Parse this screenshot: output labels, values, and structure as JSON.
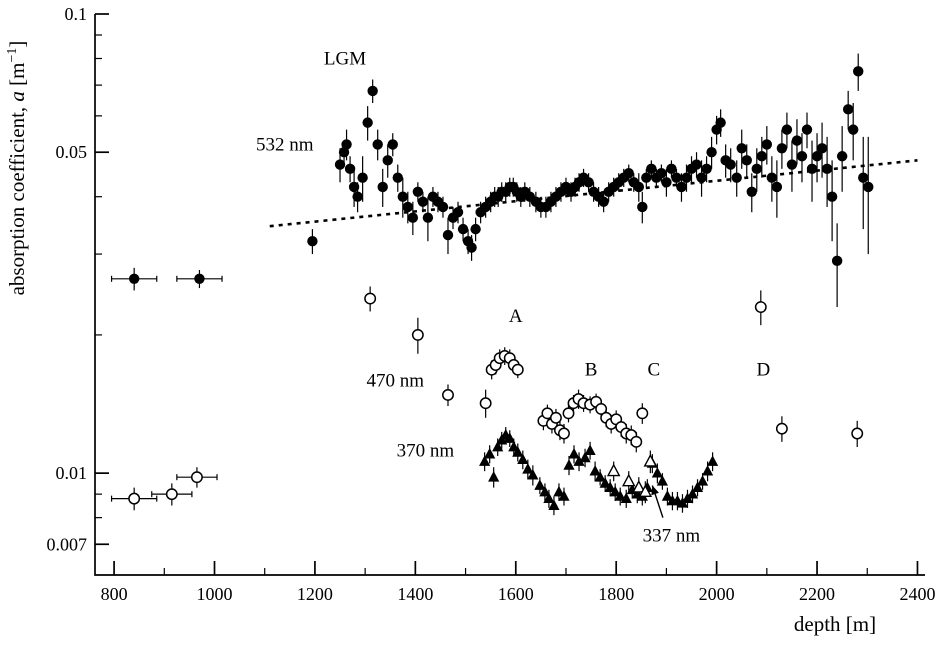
{
  "chart_data": {
    "type": "scatter",
    "title": "",
    "xlabel": "depth [m]",
    "ylabel_parts": {
      "prefix": "absorption coefficient, ",
      "italic": "a",
      "mid": " [m",
      "sup": "−1",
      "suffix": "]"
    },
    "x_axis": {
      "min": 762,
      "max": 2415,
      "major_ticks": [
        800,
        1000,
        1200,
        1400,
        1600,
        1800,
        2000,
        2200,
        2400
      ],
      "minor_ticks": [
        900,
        1100,
        1300,
        1500,
        1700,
        1900,
        2100,
        2300
      ]
    },
    "y_axis": {
      "scale": "log",
      "min": 0.006,
      "max": 0.1,
      "major_ticks": [
        {
          "v": 0.1,
          "label": "0.1"
        },
        {
          "v": 0.05,
          "label": "0.05"
        },
        {
          "v": 0.01,
          "label": "0.01"
        },
        {
          "v": 0.007,
          "label": "0.007"
        }
      ],
      "minor_ticks": [
        0.008,
        0.009,
        0.02,
        0.03,
        0.04,
        0.06,
        0.07,
        0.08,
        0.09
      ]
    },
    "trend_line": {
      "style": "dashed",
      "points": [
        [
          1110,
          0.0345
        ],
        [
          2400,
          0.048
        ]
      ]
    },
    "series": [
      {
        "name": "532 nm",
        "marker": "filled-circle",
        "points": [
          [
            840,
            0.0265,
            0.0015,
            45
          ],
          [
            970,
            0.0265,
            0.0012,
            45
          ],
          [
            1195,
            0.032,
            0.002
          ],
          [
            1250,
            0.047,
            0.004
          ],
          [
            1258,
            0.05,
            0.003
          ],
          [
            1263,
            0.052,
            0.004
          ],
          [
            1270,
            0.046,
            0.003
          ],
          [
            1278,
            0.042,
            0.004
          ],
          [
            1285,
            0.04,
            0.003
          ],
          [
            1295,
            0.044,
            0.005
          ],
          [
            1305,
            0.058,
            0.005
          ],
          [
            1315,
            0.068,
            0.004
          ],
          [
            1325,
            0.052,
            0.004
          ],
          [
            1335,
            0.042,
            0.004
          ],
          [
            1345,
            0.048,
            0.004
          ],
          [
            1355,
            0.052,
            0.003
          ],
          [
            1365,
            0.044,
            0.003
          ],
          [
            1375,
            0.04,
            0.004
          ],
          [
            1385,
            0.038,
            0.003
          ],
          [
            1395,
            0.036,
            0.003
          ],
          [
            1405,
            0.041,
            0.002
          ],
          [
            1415,
            0.039,
            0.002
          ],
          [
            1425,
            0.036,
            0.004
          ],
          [
            1435,
            0.04,
            0.002
          ],
          [
            1445,
            0.039,
            0.002
          ],
          [
            1455,
            0.038,
            0.002
          ],
          [
            1465,
            0.033,
            0.003
          ],
          [
            1475,
            0.036,
            0.002
          ],
          [
            1485,
            0.037,
            0.002
          ],
          [
            1495,
            0.034,
            0.002
          ],
          [
            1505,
            0.032,
            0.002
          ],
          [
            1512,
            0.031,
            0.002
          ],
          [
            1520,
            0.034,
            0.002
          ],
          [
            1530,
            0.037,
            0.002
          ],
          [
            1540,
            0.038,
            0.002
          ],
          [
            1550,
            0.039,
            0.002
          ],
          [
            1558,
            0.04,
            0.002
          ],
          [
            1565,
            0.04,
            0.002
          ],
          [
            1572,
            0.041,
            0.002
          ],
          [
            1580,
            0.041,
            0.002
          ],
          [
            1588,
            0.042,
            0.002
          ],
          [
            1595,
            0.042,
            0.002
          ],
          [
            1602,
            0.041,
            0.002
          ],
          [
            1610,
            0.04,
            0.002
          ],
          [
            1618,
            0.041,
            0.002
          ],
          [
            1628,
            0.04,
            0.002
          ],
          [
            1640,
            0.039,
            0.002
          ],
          [
            1650,
            0.038,
            0.002
          ],
          [
            1660,
            0.038,
            0.002
          ],
          [
            1670,
            0.039,
            0.002
          ],
          [
            1680,
            0.04,
            0.002
          ],
          [
            1690,
            0.041,
            0.002
          ],
          [
            1700,
            0.042,
            0.002
          ],
          [
            1710,
            0.041,
            0.002
          ],
          [
            1718,
            0.042,
            0.002
          ],
          [
            1726,
            0.043,
            0.002
          ],
          [
            1735,
            0.044,
            0.002
          ],
          [
            1745,
            0.043,
            0.002
          ],
          [
            1755,
            0.041,
            0.002
          ],
          [
            1765,
            0.04,
            0.002
          ],
          [
            1775,
            0.039,
            0.002
          ],
          [
            1785,
            0.041,
            0.002
          ],
          [
            1795,
            0.042,
            0.002
          ],
          [
            1805,
            0.043,
            0.002
          ],
          [
            1815,
            0.044,
            0.002
          ],
          [
            1825,
            0.045,
            0.002
          ],
          [
            1835,
            0.043,
            0.002
          ],
          [
            1845,
            0.042,
            0.003
          ],
          [
            1852,
            0.038,
            0.003
          ],
          [
            1860,
            0.044,
            0.002
          ],
          [
            1870,
            0.046,
            0.002
          ],
          [
            1880,
            0.044,
            0.002
          ],
          [
            1890,
            0.045,
            0.002
          ],
          [
            1900,
            0.043,
            0.003
          ],
          [
            1910,
            0.046,
            0.002
          ],
          [
            1920,
            0.044,
            0.002
          ],
          [
            1930,
            0.042,
            0.003
          ],
          [
            1940,
            0.044,
            0.003
          ],
          [
            1950,
            0.046,
            0.003
          ],
          [
            1960,
            0.047,
            0.003
          ],
          [
            1970,
            0.044,
            0.004
          ],
          [
            1980,
            0.046,
            0.003
          ],
          [
            1990,
            0.05,
            0.004
          ],
          [
            2000,
            0.056,
            0.004
          ],
          [
            2008,
            0.058,
            0.004
          ],
          [
            2018,
            0.048,
            0.004
          ],
          [
            2028,
            0.047,
            0.004
          ],
          [
            2040,
            0.044,
            0.004
          ],
          [
            2050,
            0.051,
            0.005
          ],
          [
            2060,
            0.048,
            0.004
          ],
          [
            2070,
            0.041,
            0.004
          ],
          [
            2080,
            0.046,
            0.005
          ],
          [
            2090,
            0.049,
            0.005
          ],
          [
            2100,
            0.052,
            0.005
          ],
          [
            2110,
            0.044,
            0.005
          ],
          [
            2120,
            0.042,
            0.006
          ],
          [
            2130,
            0.051,
            0.005
          ],
          [
            2140,
            0.056,
            0.005
          ],
          [
            2150,
            0.047,
            0.006
          ],
          [
            2160,
            0.053,
            0.006
          ],
          [
            2170,
            0.049,
            0.006
          ],
          [
            2180,
            0.056,
            0.005
          ],
          [
            2190,
            0.046,
            0.007
          ],
          [
            2200,
            0.049,
            0.006
          ],
          [
            2210,
            0.051,
            0.007
          ],
          [
            2220,
            0.046,
            0.008
          ],
          [
            2230,
            0.04,
            0.008
          ],
          [
            2240,
            0.029,
            0.006
          ],
          [
            2250,
            0.049,
            0.008
          ],
          [
            2262,
            0.062,
            0.006
          ],
          [
            2272,
            0.056,
            0.008
          ],
          [
            2282,
            0.075,
            0.007
          ],
          [
            2292,
            0.044,
            0.01
          ],
          [
            2302,
            0.042,
            0.012
          ]
        ]
      },
      {
        "name": "470 nm",
        "marker": "open-circle",
        "points": [
          [
            840,
            0.0088,
            0.0005,
            45
          ],
          [
            915,
            0.009,
            0.0005,
            40
          ],
          [
            965,
            0.0098,
            0.0005,
            40
          ],
          [
            1310,
            0.024,
            0.0015
          ],
          [
            1405,
            0.02,
            0.0018
          ],
          [
            1465,
            0.0148,
            0.0008
          ],
          [
            1540,
            0.0142,
            0.001
          ],
          [
            1552,
            0.0168,
            0.0008
          ],
          [
            1560,
            0.0172,
            0.0008
          ],
          [
            1568,
            0.0178,
            0.0008
          ],
          [
            1578,
            0.018,
            0.0008
          ],
          [
            1588,
            0.0178,
            0.0008
          ],
          [
            1596,
            0.0172,
            0.0007
          ],
          [
            1604,
            0.0168,
            0.0007
          ],
          [
            1655,
            0.013,
            0.0006
          ],
          [
            1663,
            0.0135,
            0.0006
          ],
          [
            1672,
            0.0128,
            0.0006
          ],
          [
            1680,
            0.0132,
            0.0006
          ],
          [
            1688,
            0.0124,
            0.0006
          ],
          [
            1696,
            0.0122,
            0.0006
          ],
          [
            1705,
            0.0135,
            0.0006
          ],
          [
            1715,
            0.0142,
            0.0006
          ],
          [
            1725,
            0.0145,
            0.0007
          ],
          [
            1735,
            0.0142,
            0.0006
          ],
          [
            1748,
            0.0141,
            0.0006
          ],
          [
            1760,
            0.0143,
            0.0006
          ],
          [
            1770,
            0.0138,
            0.0006
          ],
          [
            1780,
            0.0132,
            0.0006
          ],
          [
            1790,
            0.0128,
            0.0006
          ],
          [
            1800,
            0.0131,
            0.0006
          ],
          [
            1810,
            0.0126,
            0.0006
          ],
          [
            1820,
            0.0122,
            0.0006
          ],
          [
            1830,
            0.0121,
            0.0006
          ],
          [
            1840,
            0.0117,
            0.0006
          ],
          [
            1852,
            0.0135,
            0.0007
          ],
          [
            2088,
            0.023,
            0.002
          ],
          [
            2130,
            0.0125,
            0.0008
          ],
          [
            2280,
            0.0122,
            0.0008
          ]
        ]
      },
      {
        "name": "370 nm",
        "marker": "filled-triangle",
        "points": [
          [
            1538,
            0.0106,
            0.0005
          ],
          [
            1548,
            0.011,
            0.0005
          ],
          [
            1556,
            0.0098,
            0.0005
          ],
          [
            1564,
            0.0114,
            0.0005
          ],
          [
            1572,
            0.0118,
            0.0005
          ],
          [
            1580,
            0.0121,
            0.0005
          ],
          [
            1588,
            0.0119,
            0.0005
          ],
          [
            1596,
            0.0114,
            0.0005
          ],
          [
            1604,
            0.0111,
            0.0005
          ],
          [
            1614,
            0.0107,
            0.0005
          ],
          [
            1624,
            0.0102,
            0.0005
          ],
          [
            1634,
            0.0099,
            0.0005
          ],
          [
            1648,
            0.0094,
            0.0004
          ],
          [
            1658,
            0.0091,
            0.0004
          ],
          [
            1666,
            0.0088,
            0.0004
          ],
          [
            1676,
            0.0085,
            0.0004
          ],
          [
            1686,
            0.0091,
            0.0004
          ],
          [
            1696,
            0.0089,
            0.0004
          ],
          [
            1706,
            0.0104,
            0.0005
          ],
          [
            1716,
            0.011,
            0.0005
          ],
          [
            1726,
            0.0106,
            0.0005
          ],
          [
            1738,
            0.0108,
            0.0005
          ],
          [
            1748,
            0.0112,
            0.0005
          ],
          [
            1758,
            0.0101,
            0.0005
          ],
          [
            1768,
            0.0098,
            0.0004
          ],
          [
            1778,
            0.0095,
            0.0004
          ],
          [
            1788,
            0.0093,
            0.0004
          ],
          [
            1798,
            0.0091,
            0.0004
          ],
          [
            1808,
            0.0089,
            0.0004
          ],
          [
            1820,
            0.0088,
            0.0004
          ],
          [
            1832,
            0.0092,
            0.0004
          ],
          [
            1842,
            0.009,
            0.0004
          ],
          [
            1852,
            0.0089,
            0.0004
          ],
          [
            1862,
            0.0093,
            0.0004
          ],
          [
            1872,
            0.0105,
            0.0005
          ],
          [
            1882,
            0.01,
            0.0005
          ],
          [
            1892,
            0.0096,
            0.0004
          ],
          [
            1902,
            0.0089,
            0.0004
          ],
          [
            1912,
            0.0087,
            0.0004
          ],
          [
            1922,
            0.0087,
            0.0004
          ],
          [
            1932,
            0.0086,
            0.0004
          ],
          [
            1942,
            0.0088,
            0.0004
          ],
          [
            1952,
            0.009,
            0.0004
          ],
          [
            1962,
            0.0093,
            0.0004
          ],
          [
            1972,
            0.0096,
            0.0004
          ],
          [
            1982,
            0.0101,
            0.0005
          ],
          [
            1992,
            0.0106,
            0.0005
          ]
        ]
      },
      {
        "name": "337 nm",
        "marker": "open-triangle",
        "points": [
          [
            1795,
            0.0101,
            0.0005
          ],
          [
            1825,
            0.0096,
            0.0005
          ],
          [
            1845,
            0.0093,
            0.0005
          ],
          [
            1858,
            0.0091,
            0.0005
          ],
          [
            1868,
            0.0106,
            0.0006
          ]
        ]
      }
    ],
    "annotations": [
      {
        "id": "lgm",
        "text": "LGM",
        "x": 1260,
        "y": 0.08,
        "size": 21
      },
      {
        "id": "532nm",
        "text": "532 nm",
        "x": 1140,
        "y": 0.052,
        "size": 19
      },
      {
        "id": "a",
        "text": "A",
        "x": 1600,
        "y": 0.022,
        "size": 19
      },
      {
        "id": "470nm",
        "text": "470 nm",
        "x": 1360,
        "y": 0.0159,
        "size": 19
      },
      {
        "id": "b",
        "text": "B",
        "x": 1750,
        "y": 0.0168,
        "size": 19
      },
      {
        "id": "c",
        "text": "C",
        "x": 1875,
        "y": 0.0168,
        "size": 19
      },
      {
        "id": "d",
        "text": "D",
        "x": 2093,
        "y": 0.0168,
        "size": 19
      },
      {
        "id": "370nm",
        "text": "370 nm",
        "x": 1420,
        "y": 0.0112,
        "size": 19
      },
      {
        "id": "337nm",
        "text": "337 nm",
        "x": 1910,
        "y": 0.00732,
        "size": 19
      }
    ],
    "arrow": {
      "from": [
        1893,
        0.008
      ],
      "to": [
        1872,
        0.0094
      ]
    },
    "colors": {
      "foreground": "#000000",
      "background": "#ffffff"
    }
  }
}
